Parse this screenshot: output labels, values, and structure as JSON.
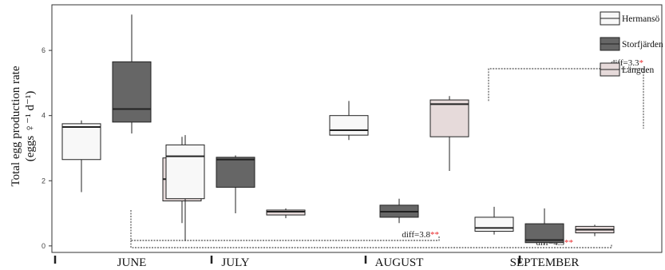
{
  "chart_data": {
    "type": "box",
    "ylabel_line1": "Total egg production rate",
    "ylabel_line2": "(eggs ♀⁻¹ d⁻¹)",
    "ylim": [
      -0.2,
      7.4
    ],
    "yticks": [
      0,
      2,
      4,
      6
    ],
    "months": [
      "JUNE",
      "JULY",
      "AUGUST",
      "SEPTEMBER"
    ],
    "series": [
      {
        "name": "Hermansö",
        "fill": "#f8f8f8"
      },
      {
        "name": "Storfjärden",
        "fill": "#666666"
      },
      {
        "name": "Längden",
        "fill": "#e6dada"
      }
    ],
    "boxes": [
      {
        "month": "JUNE",
        "site": 0,
        "min": 1.65,
        "q1": 2.65,
        "median": 3.65,
        "q3": 3.75,
        "max": 3.85
      },
      {
        "month": "JUNE",
        "site": 1,
        "min": 3.45,
        "q1": 3.8,
        "median": 4.2,
        "q3": 5.65,
        "max": 7.1
      },
      {
        "month": "JUNE",
        "site": 2,
        "min": 0.7,
        "q1": 1.38,
        "median": 2.05,
        "q3": 2.7,
        "max": 3.35
      },
      {
        "month": "JULY",
        "site": 0,
        "min": 0.15,
        "q1": 1.45,
        "median": 2.75,
        "q3": 3.1,
        "max": 3.4
      },
      {
        "month": "JULY",
        "site": 1,
        "min": 1.0,
        "q1": 1.8,
        "median": 2.65,
        "q3": 2.72,
        "max": 2.78
      },
      {
        "month": "JULY",
        "site": 2,
        "min": 0.85,
        "q1": 0.95,
        "median": 1.05,
        "q3": 1.1,
        "max": 1.15
      },
      {
        "month": "AUGUST",
        "site": 0,
        "min": 3.25,
        "q1": 3.4,
        "median": 3.55,
        "q3": 4.0,
        "max": 4.45
      },
      {
        "month": "AUGUST",
        "site": 1,
        "min": 0.7,
        "q1": 0.88,
        "median": 1.05,
        "q3": 1.25,
        "max": 1.45
      },
      {
        "month": "AUGUST",
        "site": 2,
        "min": 2.3,
        "q1": 3.35,
        "median": 4.35,
        "q3": 4.48,
        "max": 4.6
      },
      {
        "month": "SEPTEMBER",
        "site": 0,
        "min": 0.35,
        "q1": 0.45,
        "median": 0.55,
        "q3": 0.88,
        "max": 1.2
      },
      {
        "month": "SEPTEMBER",
        "site": 1,
        "min": 0.05,
        "q1": 0.1,
        "median": 0.18,
        "q3": 0.68,
        "max": 1.15
      },
      {
        "month": "SEPTEMBER",
        "site": 2,
        "min": 0.3,
        "q1": 0.4,
        "median": 0.5,
        "q3": 0.6,
        "max": 0.65
      }
    ],
    "annotations": [
      {
        "text": "diff=3.3",
        "stars": "*",
        "from": "JUNE",
        "to": "AUGUST"
      },
      {
        "text": "diff=3.8",
        "stars": "**",
        "from": "JUNE",
        "to": "AUGUST"
      },
      {
        "text": "diff=4.5",
        "stars": "**",
        "from": "JUNE",
        "to": "SEPTEMBER"
      }
    ],
    "legend_position": "top-right",
    "grid": false,
    "colors": {
      "star": "#e8282a",
      "axis": "#333333"
    }
  }
}
